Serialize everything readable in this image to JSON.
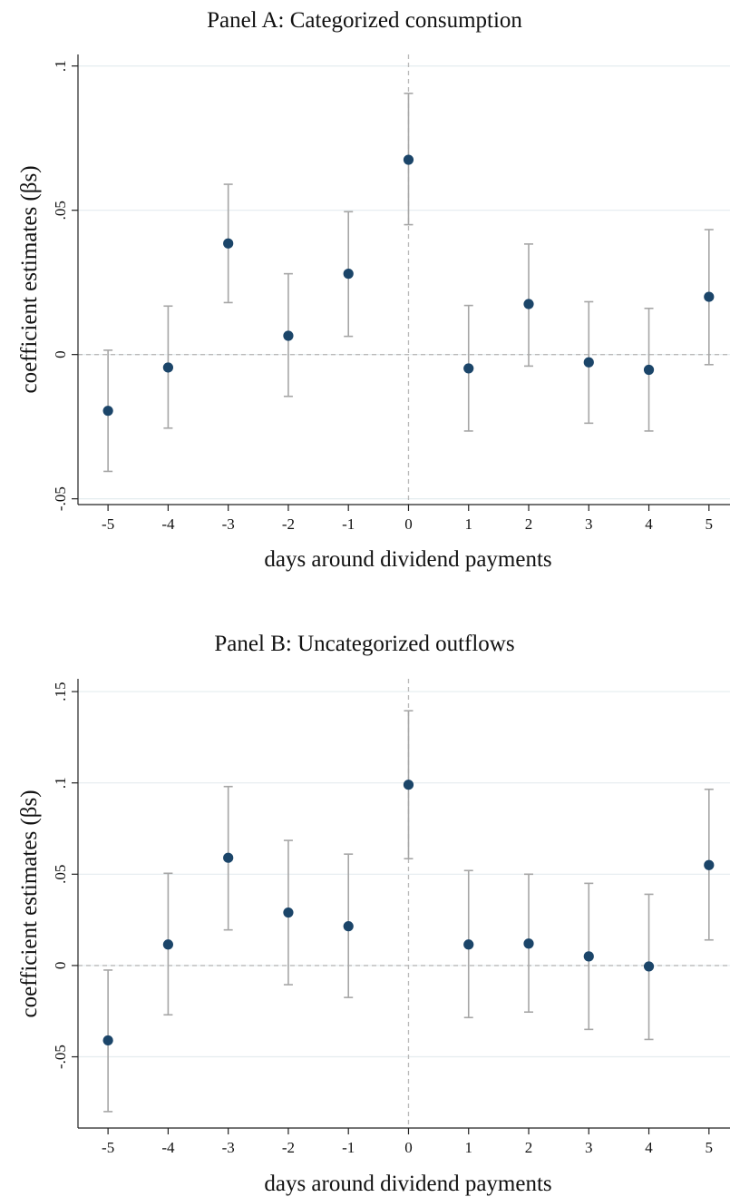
{
  "chart_data": [
    {
      "type": "scatter",
      "title": "Panel A: Categorized consumption",
      "xlabel": "days around dividend payments",
      "ylabel": "coefficient estimates (βs)",
      "x": [
        -5,
        -4,
        -3,
        -2,
        -1,
        0,
        1,
        2,
        3,
        4,
        5
      ],
      "xticks": [
        "-5",
        "-4",
        "-3",
        "-2",
        "-1",
        "0",
        "1",
        "2",
        "3",
        "4",
        "5"
      ],
      "xlim": [
        -5.5,
        5.35
      ],
      "yticks": [
        -0.05,
        0,
        0.05,
        0.1
      ],
      "ytick_labels": [
        "-.05",
        "0",
        ".05",
        ".1"
      ],
      "ylim": [
        -0.052,
        0.104
      ],
      "series": [
        {
          "values": [
            -0.0195,
            -0.0045,
            0.0385,
            0.0065,
            0.028,
            0.0675,
            -0.0048,
            0.0175,
            -0.0027,
            -0.0053,
            0.02
          ],
          "ci_low": [
            -0.0405,
            -0.0255,
            0.018,
            -0.0145,
            0.0063,
            0.045,
            -0.0265,
            -0.004,
            -0.0238,
            -0.0265,
            -0.0035
          ],
          "ci_high": [
            0.0015,
            0.0168,
            0.059,
            0.028,
            0.0495,
            0.0905,
            0.017,
            0.0383,
            0.0183,
            0.016,
            0.0433
          ]
        }
      ],
      "reference_lines": {
        "x": 0,
        "y": 0
      },
      "grid": true
    },
    {
      "type": "scatter",
      "title": "Panel B: Uncategorized outflows",
      "xlabel": "days around dividend payments",
      "ylabel": "coefficient estimates (βs)",
      "x": [
        -5,
        -4,
        -3,
        -2,
        -1,
        0,
        1,
        2,
        3,
        4,
        5
      ],
      "xticks": [
        "-5",
        "-4",
        "-3",
        "-2",
        "-1",
        "0",
        "1",
        "2",
        "3",
        "4",
        "5"
      ],
      "xlim": [
        -5.5,
        5.35
      ],
      "yticks": [
        -0.05,
        0,
        0.05,
        0.1,
        0.15
      ],
      "ytick_labels": [
        "-.05",
        "0",
        ".05",
        ".1",
        ".15"
      ],
      "ylim": [
        -0.089,
        0.157
      ],
      "series": [
        {
          "values": [
            -0.041,
            0.0115,
            0.059,
            0.029,
            0.0215,
            0.099,
            0.0115,
            0.012,
            0.005,
            -0.0005,
            0.055
          ],
          "ci_low": [
            -0.08,
            -0.027,
            0.0195,
            -0.0105,
            -0.0175,
            0.0585,
            -0.0285,
            -0.0255,
            -0.035,
            -0.0405,
            0.014
          ],
          "ci_high": [
            -0.0025,
            0.0505,
            0.098,
            0.0685,
            0.061,
            0.1395,
            0.052,
            0.05,
            0.045,
            0.039,
            0.0965
          ]
        }
      ],
      "reference_lines": {
        "x": 0,
        "y": 0
      },
      "grid": true
    }
  ]
}
